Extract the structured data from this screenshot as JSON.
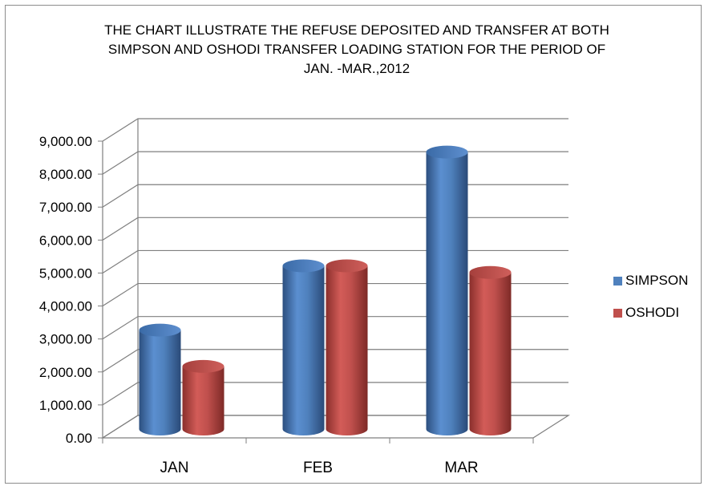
{
  "chart_data": {
    "type": "bar",
    "title_lines": [
      "THE CHART ILLUSTRATE THE REFUSE DEPOSITED AND TRANSFER AT BOTH",
      "SIMPSON AND OSHODI TRANSFER LOADING STATION FOR THE PERIOD OF",
      "JAN. -MAR.,2012"
    ],
    "categories": [
      "JAN",
      "FEB",
      "MAR"
    ],
    "series": [
      {
        "name": "SIMPSON",
        "values": [
          3000,
          4950,
          8400
        ],
        "color": "#4f81bd"
      },
      {
        "name": "OSHODI",
        "values": [
          1900,
          4950,
          4750
        ],
        "color": "#c0504d"
      }
    ],
    "y_tick_labels": [
      "0.00",
      "1,000.00",
      "2,000.00",
      "3,000.00",
      "4,000.00",
      "5,000.00",
      "6,000.00",
      "7,000.00",
      "8,000.00",
      "9,000.00"
    ],
    "ylim": [
      0,
      9000
    ],
    "grid": true,
    "legend_position": "right",
    "style": "3d-cylinder"
  }
}
